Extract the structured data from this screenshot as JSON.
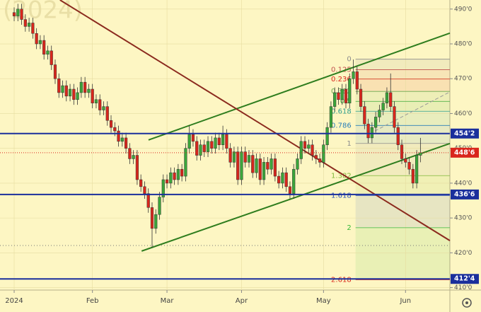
{
  "chart_data": {
    "type": "candlestick",
    "watermark": "(2024)",
    "xlim": [
      -3.8,
      116.9
    ],
    "xticks": [
      {
        "value": 0,
        "label": "2024"
      },
      {
        "value": 21,
        "label": "Feb"
      },
      {
        "value": 41,
        "label": "Mar"
      },
      {
        "value": 61,
        "label": "Apr"
      },
      {
        "value": 83,
        "label": "May"
      },
      {
        "value": 105,
        "label": "Jun"
      }
    ],
    "ylim": [
      409.3,
      492.6
    ],
    "yticks": [
      {
        "value": 410,
        "label": "410'0"
      },
      {
        "value": 420,
        "label": "420'0"
      },
      {
        "value": 430,
        "label": "430'0"
      },
      {
        "value": 440,
        "label": "440'0"
      },
      {
        "value": 450,
        "label": "450'0"
      },
      {
        "value": 460,
        "label": "460'0"
      },
      {
        "value": 470,
        "label": "470'0"
      },
      {
        "value": 480,
        "label": "480'0"
      },
      {
        "value": 490,
        "label": "490'0"
      }
    ],
    "grid": true,
    "up_color": "#3aa63a",
    "down_color": "#d9261c",
    "open": [
      489,
      488,
      490,
      487,
      485,
      486,
      483,
      480,
      481,
      477,
      478,
      474,
      470,
      466,
      468,
      465,
      467,
      464,
      466,
      469,
      466,
      467,
      463,
      464,
      461,
      462,
      458,
      456,
      455,
      452,
      453,
      450,
      447,
      448,
      441,
      439,
      437,
      433,
      427,
      431,
      436,
      441,
      440,
      443,
      441,
      444,
      442,
      450,
      454,
      452,
      448,
      451,
      449,
      452,
      450,
      453,
      451,
      454,
      450,
      446,
      449,
      441,
      449,
      446,
      448,
      443,
      447,
      441,
      446,
      444,
      447,
      442,
      440,
      443,
      439,
      437,
      444,
      447,
      452,
      450,
      451,
      448,
      447,
      446,
      451,
      456,
      462,
      466,
      464,
      467,
      463,
      470,
      472,
      467,
      462,
      457,
      453,
      456,
      459,
      461,
      463,
      466,
      462,
      456,
      451,
      447,
      446,
      444,
      440,
      448
    ],
    "high": [
      490.5,
      491.5,
      491.5,
      488.5,
      487.5,
      487.5,
      484.5,
      482.5,
      482.5,
      479.5,
      479.5,
      475.5,
      471.5,
      469.5,
      469.5,
      468.5,
      468.5,
      467.5,
      470.5,
      470.5,
      468.5,
      468.5,
      465.5,
      465.5,
      463.5,
      463.5,
      459.5,
      457.5,
      456.5,
      454.5,
      454.5,
      451.5,
      449.5,
      449.5,
      442.5,
      440.5,
      438.5,
      434.5,
      432.5,
      437.5,
      442.5,
      442.5,
      444.5,
      444.5,
      445.5,
      445.5,
      451.5,
      456.5,
      455.5,
      453.5,
      452.5,
      452.5,
      453.5,
      453.5,
      454.5,
      454.5,
      456.5,
      455.5,
      451.5,
      450.5,
      450.5,
      450.5,
      450.5,
      449.5,
      449.5,
      448.5,
      448.5,
      447.5,
      447.5,
      448.5,
      448.5,
      443.5,
      444.5,
      444.5,
      440.5,
      445.5,
      448.5,
      453.5,
      453.5,
      452.5,
      452.5,
      449.5,
      448.5,
      452.5,
      457.5,
      463.5,
      467.5,
      467.5,
      468.5,
      468.5,
      471.5,
      475.5,
      473.5,
      468.5,
      463.5,
      458.5,
      457.5,
      460.5,
      462.5,
      464.5,
      467.5,
      471.5,
      463.5,
      457.5,
      452.5,
      448.5,
      447.5,
      445.5,
      449.5,
      453
    ],
    "low": [
      486.5,
      486.5,
      485.5,
      483.5,
      483.5,
      481.5,
      478.5,
      478.5,
      475.5,
      475.5,
      472.5,
      468.5,
      464.5,
      464.5,
      463.5,
      463.5,
      462.5,
      462.5,
      464.5,
      464.5,
      464.5,
      461.5,
      461.5,
      459.5,
      459.5,
      456.5,
      454.5,
      453.5,
      450.5,
      450.5,
      448.5,
      445.5,
      445.5,
      439.5,
      437.5,
      435.5,
      431.5,
      421.5,
      425.5,
      429.5,
      434.5,
      438.5,
      438.5,
      439.5,
      439.5,
      440.5,
      440.5,
      448.5,
      450.5,
      446.5,
      446.5,
      447.5,
      447.5,
      448.5,
      448.5,
      449.5,
      449.5,
      448.5,
      444.5,
      444.5,
      439.5,
      439.5,
      444.5,
      444.5,
      441.5,
      441.5,
      439.5,
      439.5,
      442.5,
      442.5,
      440.5,
      438.5,
      438.5,
      437.5,
      435.5,
      435.5,
      442.5,
      445.5,
      448.5,
      448.5,
      446.5,
      445.5,
      444.5,
      444.5,
      449.5,
      454.5,
      460.5,
      462.5,
      462.5,
      461.5,
      461.5,
      468.5,
      465.5,
      460.5,
      455.5,
      451.5,
      451.5,
      454.5,
      457.5,
      459.5,
      461.5,
      460.5,
      454.5,
      449.5,
      445.5,
      444.5,
      442.5,
      438.5,
      438.5,
      446
    ],
    "close": [
      488,
      490,
      487,
      485,
      486,
      483,
      480,
      481,
      477,
      478,
      474,
      470,
      466,
      468,
      465,
      467,
      464,
      466,
      469,
      466,
      467,
      463,
      464,
      461,
      462,
      458,
      456,
      455,
      452,
      453,
      450,
      447,
      448,
      441,
      439,
      437,
      433,
      427,
      431,
      436,
      441,
      440,
      443,
      441,
      444,
      442,
      450,
      454,
      452,
      448,
      451,
      449,
      452,
      450,
      453,
      451,
      454,
      450,
      446,
      449,
      441,
      449,
      446,
      448,
      443,
      447,
      441,
      446,
      444,
      447,
      442,
      440,
      443,
      439,
      437,
      444,
      447,
      452,
      450,
      451,
      448,
      447,
      446,
      451,
      456,
      462,
      466,
      464,
      467,
      463,
      470,
      472,
      467,
      462,
      457,
      453,
      456,
      459,
      461,
      463,
      466,
      462,
      456,
      451,
      447,
      446,
      444,
      440,
      448,
      448.75
    ],
    "levels": [
      {
        "value": 454.25,
        "label": "454'2",
        "color": "#1a2f9c",
        "style": "solid"
      },
      {
        "value": 448.75,
        "label": "448'6",
        "color": "#d9261c",
        "style": "dotted"
      },
      {
        "value": 436.75,
        "label": "436'6",
        "color": "#1a2f9c",
        "style": "solid"
      },
      {
        "value": 412.5,
        "label": "412'4",
        "color": "#1a2f9c",
        "style": "solid"
      }
    ],
    "dotted_levels": [
      422.1
    ],
    "trendlines": [
      {
        "x": [
          36.05,
          116.9
        ],
        "y": [
          452.4,
          483.1
        ],
        "color": "#2e7d1e",
        "style": "solid"
      },
      {
        "x": [
          34.2,
          116.9
        ],
        "y": [
          420.5,
          451.4
        ],
        "color": "#2e7d1e",
        "style": "solid"
      },
      {
        "x": [
          12.3,
          116.9
        ],
        "y": [
          492.6,
          423.5
        ],
        "color": "#8b2a1e",
        "style": "solid"
      },
      {
        "x": [
          96.8,
          116.9
        ],
        "y": [
          455.0,
          466.2
        ],
        "color": "#9a9a9a",
        "style": "dashed"
      }
    ],
    "fib": {
      "start": 475.6,
      "end": 451.4,
      "x": [
        91.6,
        116.9
      ],
      "levels": [
        0,
        0.125,
        0.236,
        0.382,
        0.5,
        0.618,
        0.786,
        1,
        1.382,
        1.618,
        2,
        2.618
      ],
      "colors": [
        "#8c8c8c",
        "#c0504d",
        "#d9261c",
        "#6aa84f",
        "#38a838",
        "#2e9e8e",
        "#2a7fb8",
        "#8c8c8c",
        "#7fb83a",
        "#2a4fb8",
        "#38b838",
        "#d9261c"
      ]
    }
  }
}
